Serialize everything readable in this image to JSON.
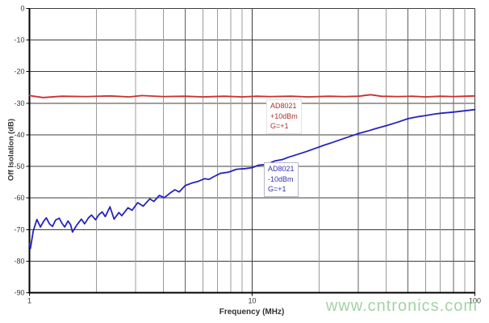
{
  "chart_data": {
    "type": "line",
    "title": "",
    "xlabel": "Frequency (MHz)",
    "ylabel": "Off Isolation (dB)",
    "x_scale": "log",
    "xlim": [
      1,
      100
    ],
    "ylim": [
      -90,
      0
    ],
    "x_ticks": [
      1,
      10,
      100
    ],
    "y_ticks": [
      0,
      -10,
      -20,
      -30,
      -40,
      -50,
      -60,
      -70,
      -80,
      -90
    ],
    "grid": "both",
    "legend_position": "none",
    "series": [
      {
        "name": "AD8021 +10dBm G=+1",
        "color": "#cc2d2d",
        "points": [
          [
            1.0,
            -27.6
          ],
          [
            1.15,
            -28.2
          ],
          [
            1.4,
            -27.8
          ],
          [
            1.8,
            -27.9
          ],
          [
            2.3,
            -27.7
          ],
          [
            2.8,
            -28.0
          ],
          [
            3.2,
            -27.6
          ],
          [
            4.0,
            -27.9
          ],
          [
            5.0,
            -27.8
          ],
          [
            6.0,
            -28.0
          ],
          [
            7.5,
            -27.8
          ],
          [
            9.0,
            -28.0
          ],
          [
            10.5,
            -27.8
          ],
          [
            12,
            -27.9
          ],
          [
            15,
            -27.8
          ],
          [
            18,
            -28.0
          ],
          [
            22,
            -27.8
          ],
          [
            26,
            -27.9
          ],
          [
            30,
            -27.8
          ],
          [
            34,
            -27.3
          ],
          [
            38,
            -27.8
          ],
          [
            45,
            -27.9
          ],
          [
            52,
            -27.8
          ],
          [
            60,
            -28.0
          ],
          [
            70,
            -27.8
          ],
          [
            80,
            -27.9
          ],
          [
            90,
            -27.8
          ],
          [
            100,
            -27.7
          ]
        ]
      },
      {
        "name": "AD8021 -10dBm G=+1",
        "color": "#2424bd",
        "points": [
          [
            1.0,
            -74.5
          ],
          [
            1.01,
            -76.0
          ],
          [
            1.04,
            -70.5
          ],
          [
            1.08,
            -66.8
          ],
          [
            1.12,
            -69.2
          ],
          [
            1.16,
            -67.3
          ],
          [
            1.19,
            -66.3
          ],
          [
            1.23,
            -68.2
          ],
          [
            1.27,
            -69.0
          ],
          [
            1.31,
            -67.0
          ],
          [
            1.36,
            -66.4
          ],
          [
            1.4,
            -68.0
          ],
          [
            1.44,
            -69.2
          ],
          [
            1.49,
            -67.3
          ],
          [
            1.53,
            -68.5
          ],
          [
            1.56,
            -70.8
          ],
          [
            1.63,
            -68.6
          ],
          [
            1.71,
            -66.7
          ],
          [
            1.77,
            -68.2
          ],
          [
            1.84,
            -66.3
          ],
          [
            1.9,
            -65.4
          ],
          [
            1.98,
            -66.9
          ],
          [
            2.05,
            -65.3
          ],
          [
            2.12,
            -64.4
          ],
          [
            2.19,
            -65.9
          ],
          [
            2.3,
            -62.8
          ],
          [
            2.4,
            -66.7
          ],
          [
            2.52,
            -64.6
          ],
          [
            2.6,
            -65.6
          ],
          [
            2.77,
            -63.1
          ],
          [
            2.89,
            -63.9
          ],
          [
            3.06,
            -61.5
          ],
          [
            3.24,
            -62.6
          ],
          [
            3.47,
            -60.3
          ],
          [
            3.62,
            -61.1
          ],
          [
            3.83,
            -59.2
          ],
          [
            4.03,
            -59.9
          ],
          [
            4.27,
            -58.5
          ],
          [
            4.5,
            -57.4
          ],
          [
            4.7,
            -58.1
          ],
          [
            5.0,
            -56.1
          ],
          [
            5.35,
            -55.3
          ],
          [
            5.7,
            -54.8
          ],
          [
            6.1,
            -53.9
          ],
          [
            6.4,
            -54.1
          ],
          [
            6.7,
            -53.3
          ],
          [
            7.2,
            -52.2
          ],
          [
            7.85,
            -51.8
          ],
          [
            8.5,
            -50.9
          ],
          [
            9.3,
            -50.7
          ],
          [
            10.0,
            -50.4
          ],
          [
            10.7,
            -49.6
          ],
          [
            11.6,
            -49.4
          ],
          [
            12.6,
            -48.3
          ],
          [
            13.7,
            -47.8
          ],
          [
            14.7,
            -47.0
          ],
          [
            16.0,
            -46.2
          ],
          [
            17.5,
            -45.3
          ],
          [
            19.0,
            -44.4
          ],
          [
            21.0,
            -43.3
          ],
          [
            23.0,
            -42.4
          ],
          [
            25.0,
            -41.5
          ],
          [
            27.0,
            -40.7
          ],
          [
            30.0,
            -39.6
          ],
          [
            33.0,
            -38.8
          ],
          [
            36.0,
            -38.0
          ],
          [
            40.0,
            -37.1
          ],
          [
            45.0,
            -36.0
          ],
          [
            50.0,
            -34.9
          ],
          [
            55.0,
            -34.3
          ],
          [
            60.0,
            -33.9
          ],
          [
            65.0,
            -33.5
          ],
          [
            70.0,
            -33.2
          ],
          [
            80.0,
            -32.8
          ],
          [
            90.0,
            -32.4
          ],
          [
            100.0,
            -32.0
          ]
        ]
      }
    ],
    "annotations": [
      {
        "lines": [
          "AD8021",
          "+10dBm",
          "G=+1"
        ],
        "color": "#b03030"
      },
      {
        "lines": [
          "AD8021",
          "-10dBm",
          "G=+1"
        ],
        "color": "#3434a8"
      }
    ]
  },
  "watermark": {
    "text": "www.cntronics.com",
    "color": "#a4d2a4"
  },
  "grid_colors": {
    "horizontal": "#3c3c3c",
    "vertical_minor": "#9b9b9b",
    "vertical_emphasis": "#5f5f5f",
    "vertical_major": "#3c3c3c",
    "axis": "#000000"
  }
}
